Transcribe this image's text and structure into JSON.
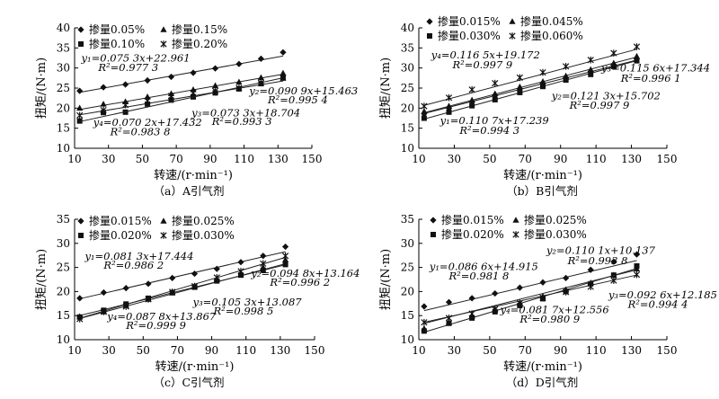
{
  "chart_data": [
    {
      "type": "scatter",
      "caption": "（a）A引气剂",
      "xlabel": "转速/(r·min⁻¹)",
      "ylabel": "扭矩/(N·m)",
      "xlim": [
        10,
        150
      ],
      "ylim": [
        10,
        40
      ],
      "xticks": [
        10,
        30,
        50,
        70,
        90,
        110,
        130,
        150
      ],
      "yticks": [
        10,
        15,
        20,
        25,
        30,
        35,
        40
      ],
      "series": [
        {
          "name": "掺量0.05%",
          "marker": "diamond",
          "slope": 0.0753,
          "intercept": 22.961,
          "x": [
            13,
            27,
            40,
            53,
            67,
            80,
            93,
            107,
            120,
            133
          ],
          "y": [
            24.3,
            25.2,
            25.9,
            26.9,
            27.8,
            28.8,
            29.9,
            31.0,
            32.3,
            33.9
          ]
        },
        {
          "name": "掺量0.15%",
          "marker": "triangle",
          "slope": 0.0733,
          "intercept": 18.704,
          "x": [
            13,
            27,
            40,
            53,
            67,
            80,
            93,
            107,
            120,
            133
          ],
          "y": [
            20.0,
            21.0,
            21.6,
            22.8,
            23.6,
            24.6,
            25.6,
            26.5,
            27.6,
            28.7
          ]
        },
        {
          "name": "掺量0.10%",
          "marker": "square",
          "slope": 0.0702,
          "intercept": 17.432,
          "x": [
            13,
            27,
            40,
            53,
            67,
            80,
            93,
            107,
            120,
            133
          ],
          "y": [
            16.8,
            18.9,
            19.0,
            21.0,
            22.0,
            22.8,
            23.8,
            24.8,
            26.1,
            27.5
          ]
        },
        {
          "name": "掺量0.20%",
          "marker": "asterisk",
          "slope": 0.0909,
          "intercept": 15.463,
          "x": [
            13,
            27,
            40,
            53,
            67,
            80,
            93,
            107,
            120,
            133
          ],
          "y": [
            18.2,
            19.5,
            20.8,
            21.8,
            23.0,
            23.8,
            24.3,
            25.0,
            26.3,
            27.6
          ]
        }
      ],
      "legend": [
        {
          "label": "掺量0.05%",
          "marker": "diamond"
        },
        {
          "label": "掺量0.15%",
          "marker": "triangle"
        },
        {
          "label": "掺量0.10%",
          "marker": "square"
        },
        {
          "label": "掺量0.20%",
          "marker": "asterisk"
        }
      ],
      "annotations": [
        {
          "text": "y₁=0.075 3x+22.961",
          "x": 14,
          "y": 31.6
        },
        {
          "text": "R²=0.977 3",
          "x": 24,
          "y": 29.3
        },
        {
          "text": "y₂=0.090 9x+15.463",
          "x": 113,
          "y": 23.4
        },
        {
          "text": "R²=0.995 4",
          "x": 124,
          "y": 21.2
        },
        {
          "text": "y₃=0.073 3x+18.704",
          "x": 79,
          "y": 17.9
        },
        {
          "text": "R²=0.993 3",
          "x": 91,
          "y": 15.8
        },
        {
          "text": "y₄=0.070 2x+17.432",
          "x": 21,
          "y": 15.6
        },
        {
          "text": "R²=0.983 8",
          "x": 31,
          "y": 13.2
        }
      ]
    },
    {
      "type": "scatter",
      "caption": "（b）B引气剂",
      "xlabel": "转速/(r·min⁻¹)",
      "ylabel": "扭矩/(N·m)",
      "xlim": [
        10,
        150
      ],
      "ylim": [
        10,
        40
      ],
      "xticks": [
        10,
        30,
        50,
        70,
        90,
        110,
        130,
        150
      ],
      "yticks": [
        10,
        15,
        20,
        25,
        30,
        35,
        40
      ],
      "series": [
        {
          "name": "掺量0.015%",
          "marker": "diamond",
          "slope": 0.1107,
          "intercept": 17.239,
          "x": [
            13,
            27,
            40,
            53,
            67,
            80,
            93,
            107,
            120,
            133
          ],
          "y": [
            18.6,
            20.0,
            21.6,
            23.1,
            24.8,
            26.2,
            27.6,
            29.1,
            30.8,
            32.3
          ]
        },
        {
          "name": "掺量0.045%",
          "marker": "triangle",
          "slope": 0.1156,
          "intercept": 17.344,
          "x": [
            13,
            27,
            40,
            53,
            67,
            80,
            93,
            107,
            120,
            133
          ],
          "y": [
            19.2,
            20.5,
            22.0,
            23.6,
            25.3,
            26.6,
            28.0,
            29.6,
            31.2,
            32.9
          ]
        },
        {
          "name": "掺量0.030%",
          "marker": "square",
          "slope": 0.1213,
          "intercept": 15.702,
          "x": [
            13,
            27,
            40,
            53,
            67,
            80,
            93,
            107,
            120,
            133
          ],
          "y": [
            17.5,
            19.0,
            20.6,
            22.1,
            23.9,
            25.4,
            27.0,
            28.4,
            30.4,
            31.8
          ]
        },
        {
          "name": "掺量0.060%",
          "marker": "asterisk",
          "slope": 0.1165,
          "intercept": 19.172,
          "x": [
            13,
            27,
            40,
            53,
            67,
            80,
            93,
            107,
            120,
            133
          ],
          "y": [
            20.5,
            22.6,
            24.6,
            26.2,
            27.6,
            28.9,
            30.4,
            32.0,
            33.7,
            35.3
          ]
        }
      ],
      "legend": [
        {
          "label": "掺量0.015%",
          "marker": "diamond"
        },
        {
          "label": "掺量0.045%",
          "marker": "triangle"
        },
        {
          "label": "掺量0.030%",
          "marker": "square"
        },
        {
          "label": "掺量0.060%",
          "marker": "asterisk"
        }
      ],
      "annotations": [
        {
          "text": "y₄=0.116 5x+19.172",
          "x": 17,
          "y": 32.4
        },
        {
          "text": "R²=0.997 9",
          "x": 29,
          "y": 29.9
        },
        {
          "text": "y₃=0.115 6x+17.344",
          "x": 113,
          "y": 29.1
        },
        {
          "text": "R²=0.996 1",
          "x": 124,
          "y": 26.6
        },
        {
          "text": "y₂=0.121 3x+15.702",
          "x": 85,
          "y": 22.2
        },
        {
          "text": "R²=0.997 9",
          "x": 95,
          "y": 19.8
        },
        {
          "text": "y₁=0.110 7x+17.239",
          "x": 22,
          "y": 16.0
        },
        {
          "text": "R²=0.994 3",
          "x": 33,
          "y": 13.6
        }
      ]
    },
    {
      "type": "scatter",
      "caption": "（c）C引气剂",
      "xlabel": "转速/(r·min⁻¹)",
      "ylabel": "扭矩/(N·m)",
      "xlim": [
        10,
        150
      ],
      "ylim": [
        10,
        35
      ],
      "xticks": [
        10,
        30,
        50,
        70,
        90,
        110,
        130,
        150
      ],
      "yticks": [
        10,
        15,
        20,
        25,
        30,
        35
      ],
      "series": [
        {
          "name": "掺量0.015%",
          "marker": "diamond",
          "slope": 0.0813,
          "intercept": 17.444,
          "x": [
            13,
            27,
            40,
            53,
            67,
            80,
            93,
            107,
            120,
            133
          ],
          "y": [
            18.6,
            19.8,
            20.7,
            21.6,
            22.8,
            23.7,
            24.7,
            26.1,
            27.4,
            29.3
          ]
        },
        {
          "name": "掺量0.025%",
          "marker": "triangle",
          "slope": 0.0948,
          "intercept": 13.164,
          "x": [
            13,
            27,
            40,
            53,
            67,
            80,
            93,
            107,
            120,
            133
          ],
          "y": [
            14.8,
            15.8,
            17.1,
            18.4,
            19.7,
            21.1,
            22.5,
            23.5,
            25.0,
            26.6
          ]
        },
        {
          "name": "掺量0.020%",
          "marker": "square",
          "slope": 0.0878,
          "intercept": 13.867,
          "x": [
            13,
            27,
            40,
            53,
            67,
            80,
            93,
            107,
            120,
            133
          ],
          "y": [
            14.7,
            16.1,
            17.4,
            18.6,
            19.8,
            20.9,
            22.2,
            23.4,
            24.4,
            25.6
          ]
        },
        {
          "name": "掺量0.030%",
          "marker": "asterisk",
          "slope": 0.1053,
          "intercept": 13.087,
          "x": [
            13,
            27,
            40,
            53,
            67,
            80,
            93,
            107,
            120,
            133
          ],
          "y": [
            14.3,
            15.8,
            16.9,
            18.4,
            19.9,
            21.1,
            22.9,
            24.2,
            25.8,
            27.4
          ]
        }
      ],
      "legend": [
        {
          "label": "掺量0.015%",
          "marker": "diamond"
        },
        {
          "label": "掺量0.025%",
          "marker": "triangle"
        },
        {
          "label": "掺量0.020%",
          "marker": "square"
        },
        {
          "label": "掺量0.030%",
          "marker": "asterisk"
        }
      ],
      "annotations": [
        {
          "text": "y₁=0.081 3x+17.444",
          "x": 16,
          "y": 26.6
        },
        {
          "text": "R²=0.986 2",
          "x": 27,
          "y": 24.7
        },
        {
          "text": "y₂=0.094 8x+13.164",
          "x": 113,
          "y": 23.1
        },
        {
          "text": "R²=0.996 2",
          "x": 124,
          "y": 21.2
        },
        {
          "text": "y₃=0.105 3x+13.087",
          "x": 79,
          "y": 17.1
        },
        {
          "text": "R²=0.998 5",
          "x": 91,
          "y": 15.2
        },
        {
          "text": "y₄=0.087 8x+13.867",
          "x": 29,
          "y": 14.1
        },
        {
          "text": "R²=0.999 9",
          "x": 40,
          "y": 12.2
        }
      ]
    },
    {
      "type": "scatter",
      "caption": "（d）D引气剂",
      "xlabel": "转速/(r·min⁻¹)",
      "ylabel": "扭矩/(N·m)",
      "xlim": [
        10,
        150
      ],
      "ylim": [
        10,
        35
      ],
      "xticks": [
        10,
        30,
        50,
        70,
        90,
        110,
        130,
        150
      ],
      "yticks": [
        10,
        15,
        20,
        25,
        30,
        35
      ],
      "series": [
        {
          "name": "掺量0.015%",
          "marker": "diamond",
          "slope": 0.0866,
          "intercept": 14.915,
          "x": [
            13,
            27,
            40,
            53,
            67,
            80,
            93,
            107,
            120,
            133
          ],
          "y": [
            16.9,
            17.8,
            18.6,
            19.6,
            20.8,
            21.9,
            22.8,
            24.5,
            26.2,
            27.7
          ]
        },
        {
          "name": "掺量0.025%",
          "marker": "triangle",
          "slope": 0.1101,
          "intercept": 10.137,
          "x": [
            13,
            27,
            40,
            53,
            67,
            80,
            93,
            107,
            120,
            133
          ],
          "y": [
            12.3,
            13.6,
            14.9,
            16.3,
            17.6,
            19.0,
            20.4,
            21.8,
            23.4,
            24.7
          ]
        },
        {
          "name": "掺量0.020%",
          "marker": "square",
          "slope": 0.0817,
          "intercept": 12.556,
          "x": [
            13,
            27,
            40,
            53,
            67,
            80,
            93,
            107,
            120,
            133
          ],
          "y": [
            11.8,
            13.4,
            14.5,
            15.8,
            17.1,
            18.5,
            20.0,
            21.6,
            23.4,
            25.3
          ]
        },
        {
          "name": "掺量0.030%",
          "marker": "asterisk",
          "slope": 0.0926,
          "intercept": 12.185,
          "x": [
            13,
            27,
            40,
            53,
            67,
            80,
            93,
            107,
            120,
            133
          ],
          "y": [
            13.6,
            14.5,
            15.4,
            16.3,
            17.6,
            18.7,
            19.9,
            21.0,
            22.3,
            23.5
          ]
        }
      ],
      "legend": [
        {
          "label": "掺量0.015%",
          "marker": "diamond"
        },
        {
          "label": "掺量0.025%",
          "marker": "triangle"
        },
        {
          "label": "掺量0.020%",
          "marker": "square"
        },
        {
          "label": "掺量0.030%",
          "marker": "asterisk"
        }
      ],
      "annotations": [
        {
          "text": "y₂=0.110 1x+10.137",
          "x": 82,
          "y": 27.8
        },
        {
          "text": "R²=0.993 8",
          "x": 94,
          "y": 25.7
        },
        {
          "text": "y₁=0.086 6x+14.915",
          "x": 16,
          "y": 24.5
        },
        {
          "text": "R²=0.981 8",
          "x": 27,
          "y": 22.5
        },
        {
          "text": "y₃=0.092 6x+12.185",
          "x": 117,
          "y": 18.6
        },
        {
          "text": "R²=0.994 4",
          "x": 128,
          "y": 16.6
        },
        {
          "text": "y₄=0.081 7x+12.556",
          "x": 56,
          "y": 15.5
        },
        {
          "text": "R²=0.980 9",
          "x": 67,
          "y": 13.5
        }
      ]
    }
  ]
}
